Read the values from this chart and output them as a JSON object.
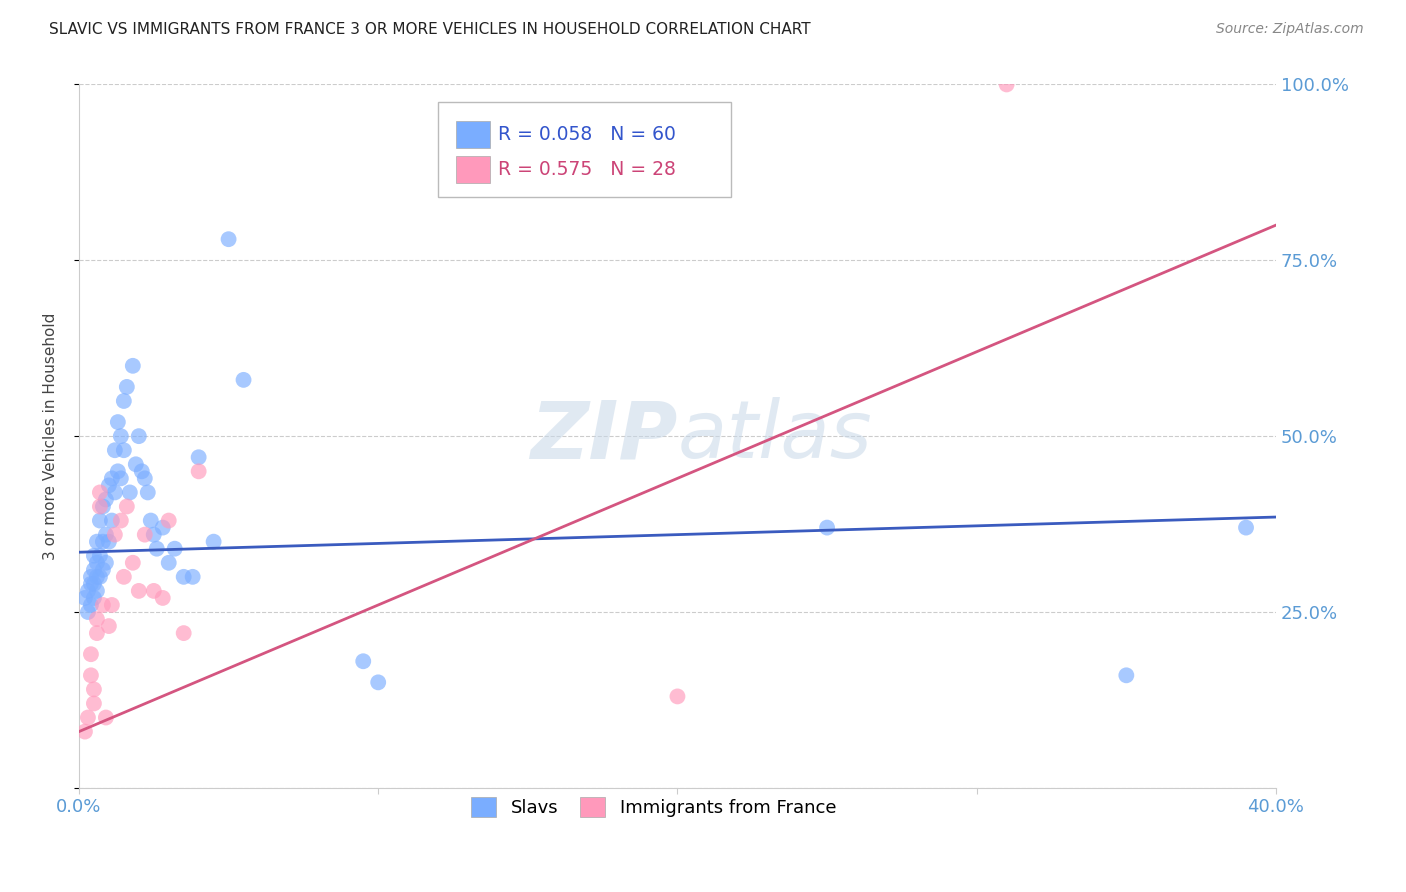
{
  "title": "SLAVIC VS IMMIGRANTS FROM FRANCE 3 OR MORE VEHICLES IN HOUSEHOLD CORRELATION CHART",
  "source": "Source: ZipAtlas.com",
  "ylabel": "3 or more Vehicles in Household",
  "x_min": 0.0,
  "x_max": 0.4,
  "y_min": 0.0,
  "y_max": 1.0,
  "yticks": [
    0.0,
    0.25,
    0.5,
    0.75,
    1.0
  ],
  "ytick_labels": [
    "",
    "25.0%",
    "50.0%",
    "75.0%",
    "100.0%"
  ],
  "xticks": [
    0.0,
    0.1,
    0.2,
    0.3,
    0.4
  ],
  "xtick_labels": [
    "0.0%",
    "",
    "",
    "",
    "40.0%"
  ],
  "legend_color1": "#7aadff",
  "legend_color2": "#ff99bb",
  "watermark": "ZIPatlas",
  "slavs_color": "#7aadff",
  "france_color": "#ff99bb",
  "slavs_alpha": 0.65,
  "france_alpha": 0.65,
  "line_blue": "#3a5bbf",
  "line_pink": "#d45580",
  "slavs_x": [
    0.002,
    0.003,
    0.003,
    0.004,
    0.004,
    0.004,
    0.005,
    0.005,
    0.005,
    0.005,
    0.006,
    0.006,
    0.006,
    0.006,
    0.007,
    0.007,
    0.007,
    0.008,
    0.008,
    0.008,
    0.009,
    0.009,
    0.009,
    0.01,
    0.01,
    0.011,
    0.011,
    0.012,
    0.012,
    0.013,
    0.013,
    0.014,
    0.014,
    0.015,
    0.015,
    0.016,
    0.017,
    0.018,
    0.019,
    0.02,
    0.021,
    0.022,
    0.023,
    0.024,
    0.025,
    0.026,
    0.028,
    0.03,
    0.032,
    0.035,
    0.038,
    0.04,
    0.045,
    0.05,
    0.055,
    0.095,
    0.1,
    0.25,
    0.35,
    0.39
  ],
  "slavs_y": [
    0.27,
    0.25,
    0.28,
    0.26,
    0.29,
    0.3,
    0.27,
    0.29,
    0.31,
    0.33,
    0.28,
    0.3,
    0.32,
    0.35,
    0.3,
    0.33,
    0.38,
    0.31,
    0.35,
    0.4,
    0.32,
    0.36,
    0.41,
    0.35,
    0.43,
    0.38,
    0.44,
    0.42,
    0.48,
    0.45,
    0.52,
    0.44,
    0.5,
    0.48,
    0.55,
    0.57,
    0.42,
    0.6,
    0.46,
    0.5,
    0.45,
    0.44,
    0.42,
    0.38,
    0.36,
    0.34,
    0.37,
    0.32,
    0.34,
    0.3,
    0.3,
    0.47,
    0.35,
    0.78,
    0.58,
    0.18,
    0.15,
    0.37,
    0.16,
    0.37
  ],
  "france_x": [
    0.002,
    0.003,
    0.004,
    0.004,
    0.005,
    0.005,
    0.006,
    0.006,
    0.007,
    0.007,
    0.008,
    0.009,
    0.01,
    0.011,
    0.012,
    0.014,
    0.015,
    0.016,
    0.018,
    0.02,
    0.022,
    0.025,
    0.028,
    0.03,
    0.035,
    0.04,
    0.2,
    0.31
  ],
  "france_y": [
    0.08,
    0.1,
    0.16,
    0.19,
    0.12,
    0.14,
    0.22,
    0.24,
    0.4,
    0.42,
    0.26,
    0.1,
    0.23,
    0.26,
    0.36,
    0.38,
    0.3,
    0.4,
    0.32,
    0.28,
    0.36,
    0.28,
    0.27,
    0.38,
    0.22,
    0.45,
    0.13,
    1.0
  ],
  "slavs_line_x": [
    0.0,
    0.4
  ],
  "slavs_line_y": [
    0.335,
    0.385
  ],
  "france_line_x": [
    0.0,
    0.4
  ],
  "france_line_y": [
    0.08,
    0.8
  ]
}
